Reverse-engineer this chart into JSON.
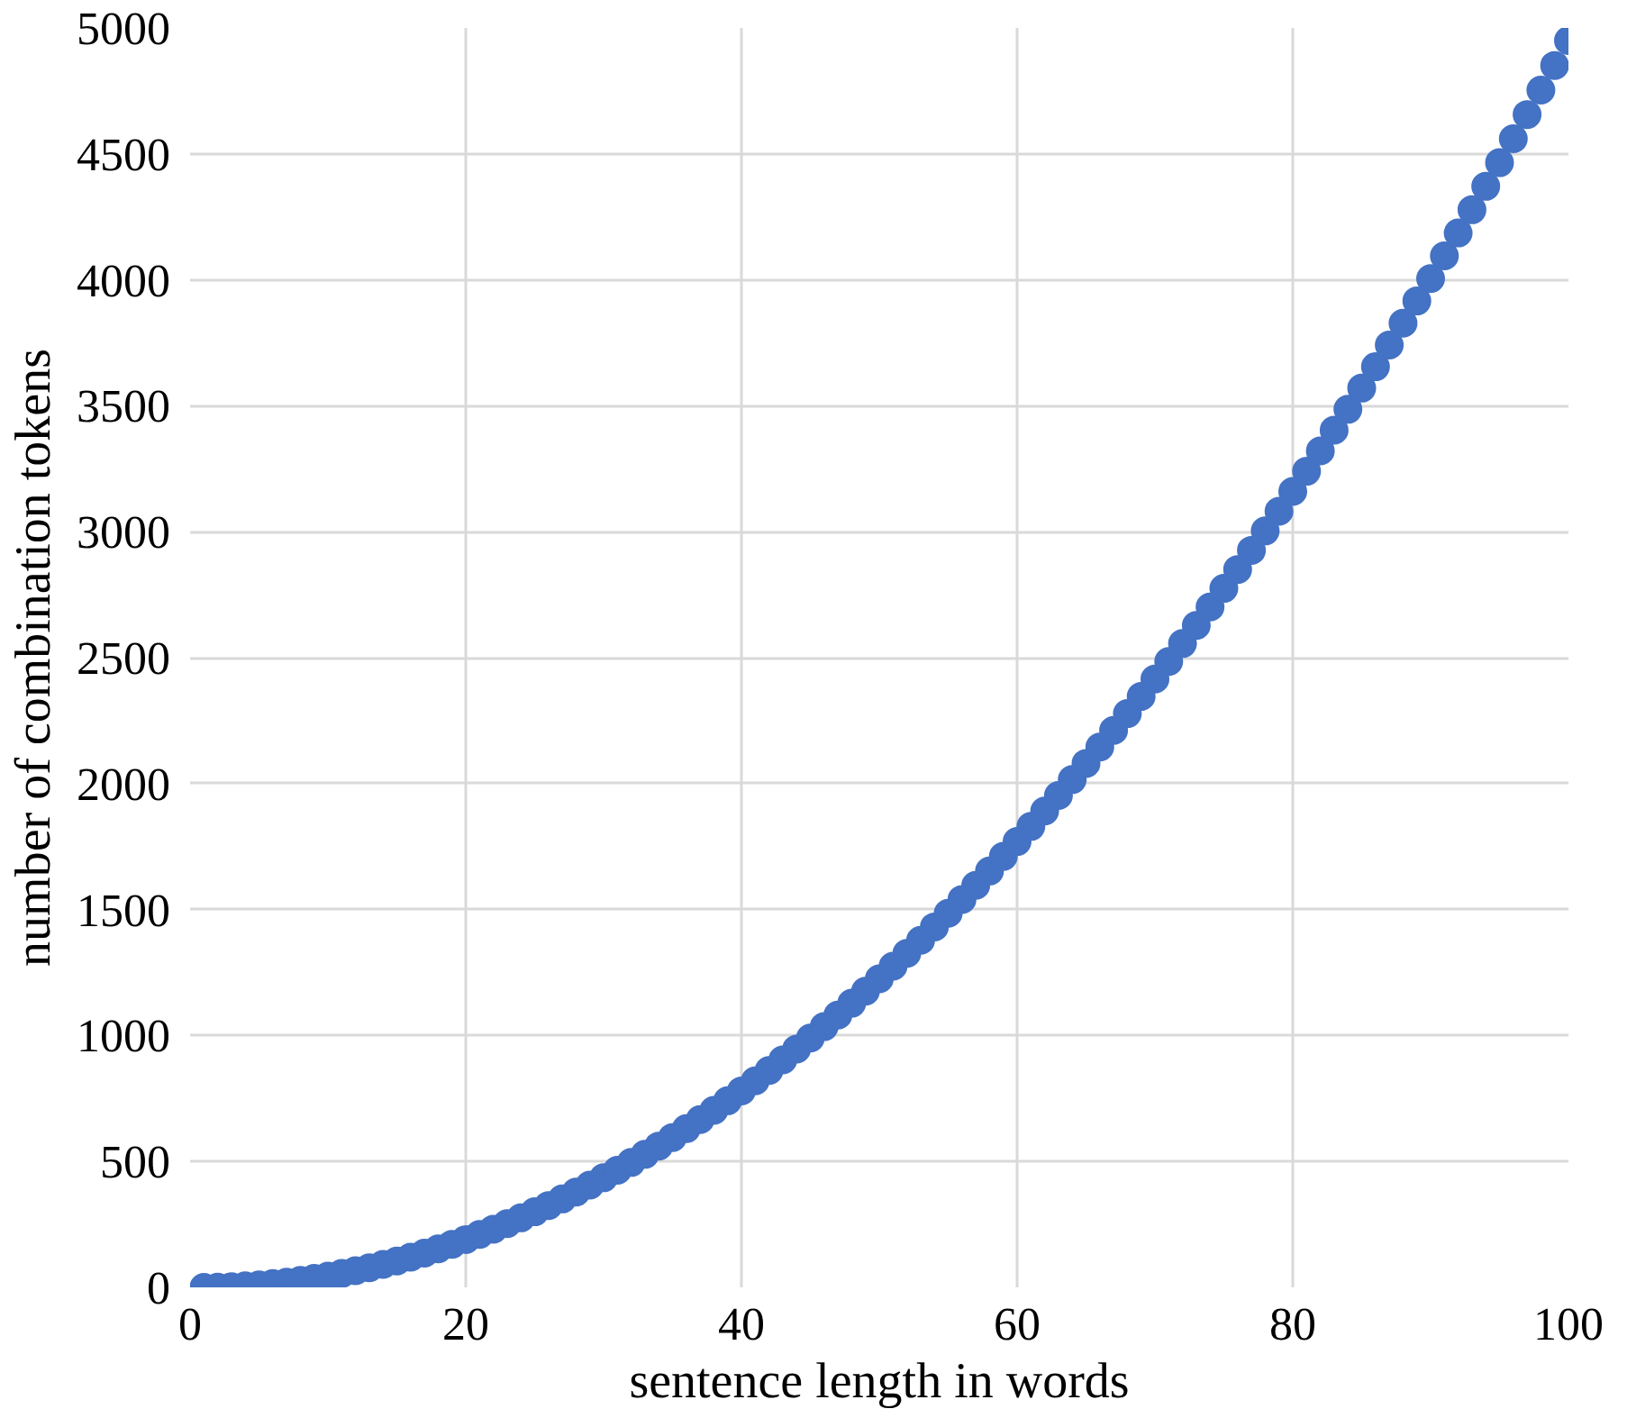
{
  "chart_data": {
    "type": "scatter",
    "xlabel": "sentence length in words",
    "ylabel": "number of combination tokens",
    "x": [
      1,
      2,
      3,
      4,
      5,
      6,
      7,
      8,
      9,
      10,
      11,
      12,
      13,
      14,
      15,
      16,
      17,
      18,
      19,
      20,
      21,
      22,
      23,
      24,
      25,
      26,
      27,
      28,
      29,
      30,
      31,
      32,
      33,
      34,
      35,
      36,
      37,
      38,
      39,
      40,
      41,
      42,
      43,
      44,
      45,
      46,
      47,
      48,
      49,
      50,
      51,
      52,
      53,
      54,
      55,
      56,
      57,
      58,
      59,
      60,
      61,
      62,
      63,
      64,
      65,
      66,
      67,
      68,
      69,
      70,
      71,
      72,
      73,
      74,
      75,
      76,
      77,
      78,
      79,
      80,
      81,
      82,
      83,
      84,
      85,
      86,
      87,
      88,
      89,
      90,
      91,
      92,
      93,
      94,
      95,
      96,
      97,
      98,
      99,
      100
    ],
    "series": [
      {
        "color": "#4472c4",
        "values": [
          0,
          1,
          3,
          6,
          10,
          15,
          21,
          28,
          36,
          45,
          55,
          66,
          78,
          91,
          105,
          120,
          136,
          153,
          171,
          190,
          210,
          231,
          253,
          276,
          300,
          325,
          351,
          378,
          406,
          435,
          465,
          496,
          528,
          561,
          595,
          630,
          666,
          703,
          741,
          780,
          820,
          861,
          903,
          946,
          990,
          1035,
          1081,
          1128,
          1176,
          1225,
          1275,
          1326,
          1378,
          1431,
          1485,
          1540,
          1596,
          1653,
          1711,
          1770,
          1830,
          1891,
          1953,
          2016,
          2080,
          2145,
          2211,
          2278,
          2346,
          2415,
          2485,
          2556,
          2628,
          2701,
          2775,
          2850,
          2926,
          3003,
          3081,
          3160,
          3240,
          3321,
          3403,
          3486,
          3570,
          3655,
          3741,
          3828,
          3916,
          4005,
          4095,
          4186,
          4278,
          4371,
          4465,
          4560,
          4656,
          4753,
          4851,
          4950
        ]
      }
    ],
    "xlim": [
      0,
      100
    ],
    "xticks": [
      0,
      20,
      40,
      60,
      80,
      100
    ],
    "ylim": [
      0,
      5000
    ],
    "yticks": [
      0,
      500,
      1000,
      1500,
      2000,
      2500,
      3000,
      3500,
      4000,
      4500,
      5000
    ],
    "grid": true,
    "marker": "circle"
  }
}
